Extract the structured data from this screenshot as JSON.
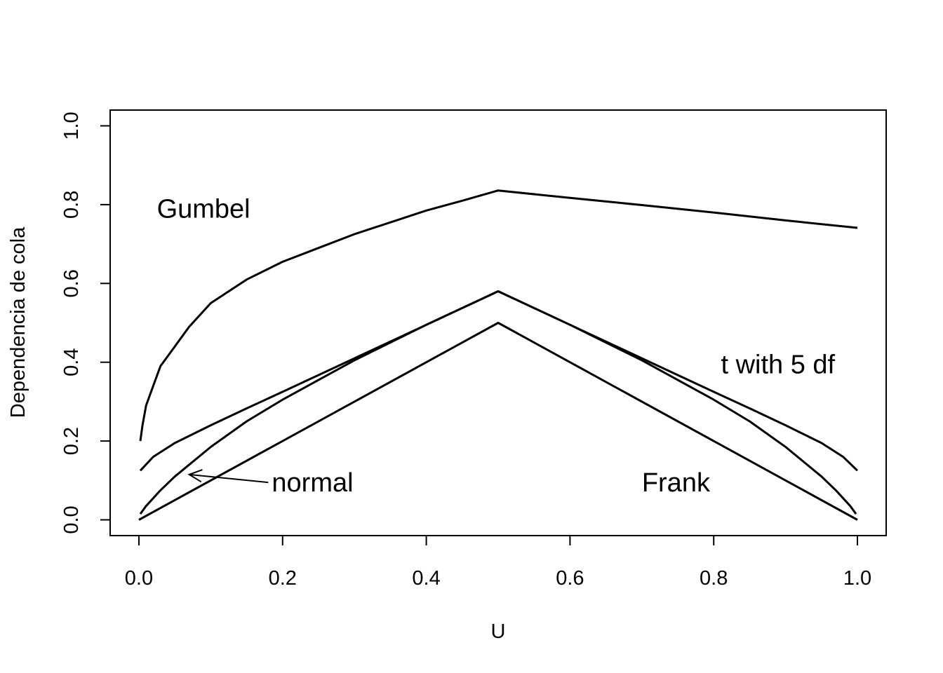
{
  "chart_data": {
    "type": "line",
    "title": "",
    "xlabel": "U",
    "ylabel": "Dependencia de cola",
    "xlim": [
      -0.04,
      1.04
    ],
    "ylim": [
      -0.04,
      1.04
    ],
    "xticks": [
      "0.0",
      "0.2",
      "0.4",
      "0.6",
      "0.8",
      "1.0"
    ],
    "yticks": [
      "0.0",
      "0.2",
      "0.4",
      "0.6",
      "0.8",
      "1.0"
    ],
    "grid": false,
    "legend": "none",
    "series": [
      {
        "name": "Gumbel",
        "x": [
          0.002,
          0.005,
          0.01,
          0.02,
          0.03,
          0.05,
          0.07,
          0.1,
          0.15,
          0.2,
          0.25,
          0.3,
          0.35,
          0.4,
          0.45,
          0.5,
          0.6,
          0.7,
          0.8,
          0.9,
          1.0
        ],
        "y": [
          0.2,
          0.24,
          0.29,
          0.34,
          0.39,
          0.44,
          0.49,
          0.55,
          0.61,
          0.655,
          0.69,
          0.725,
          0.755,
          0.785,
          0.81,
          0.836,
          0.817,
          0.799,
          0.78,
          0.76,
          0.741
        ]
      },
      {
        "name": "t with 5 df",
        "x": [
          0.002,
          0.02,
          0.05,
          0.1,
          0.15,
          0.2,
          0.3,
          0.4,
          0.5,
          0.6,
          0.7,
          0.8,
          0.85,
          0.9,
          0.95,
          0.98,
          1.0
        ],
        "y": [
          0.125,
          0.16,
          0.195,
          0.24,
          0.283,
          0.325,
          0.41,
          0.495,
          0.58,
          0.495,
          0.41,
          0.325,
          0.283,
          0.24,
          0.195,
          0.16,
          0.125
        ]
      },
      {
        "name": "normal",
        "x": [
          0.002,
          0.01,
          0.03,
          0.05,
          0.1,
          0.15,
          0.2,
          0.3,
          0.4,
          0.5,
          0.6,
          0.7,
          0.8,
          0.85,
          0.9,
          0.95,
          0.97,
          0.99,
          0.998
        ],
        "y": [
          0.015,
          0.035,
          0.075,
          0.11,
          0.185,
          0.25,
          0.305,
          0.405,
          0.495,
          0.58,
          0.495,
          0.405,
          0.305,
          0.25,
          0.185,
          0.11,
          0.075,
          0.035,
          0.015
        ]
      },
      {
        "name": "Frank",
        "x": [
          0.0,
          0.5,
          1.0
        ],
        "y": [
          0.0,
          0.5,
          0.0
        ]
      }
    ],
    "annotations": [
      {
        "text": "Gumbel",
        "x": 0.025,
        "y": 0.79,
        "anchor": "start"
      },
      {
        "text": "t with 5 df",
        "x": 0.81,
        "y": 0.395,
        "anchor": "start"
      },
      {
        "text": "normal",
        "x": 0.185,
        "y": 0.095,
        "anchor": "start"
      },
      {
        "text": "Frank",
        "x": 0.7,
        "y": 0.095,
        "anchor": "start"
      }
    ],
    "arrow": {
      "from": [
        0.18,
        0.095
      ],
      "to": [
        0.07,
        0.115
      ]
    }
  }
}
